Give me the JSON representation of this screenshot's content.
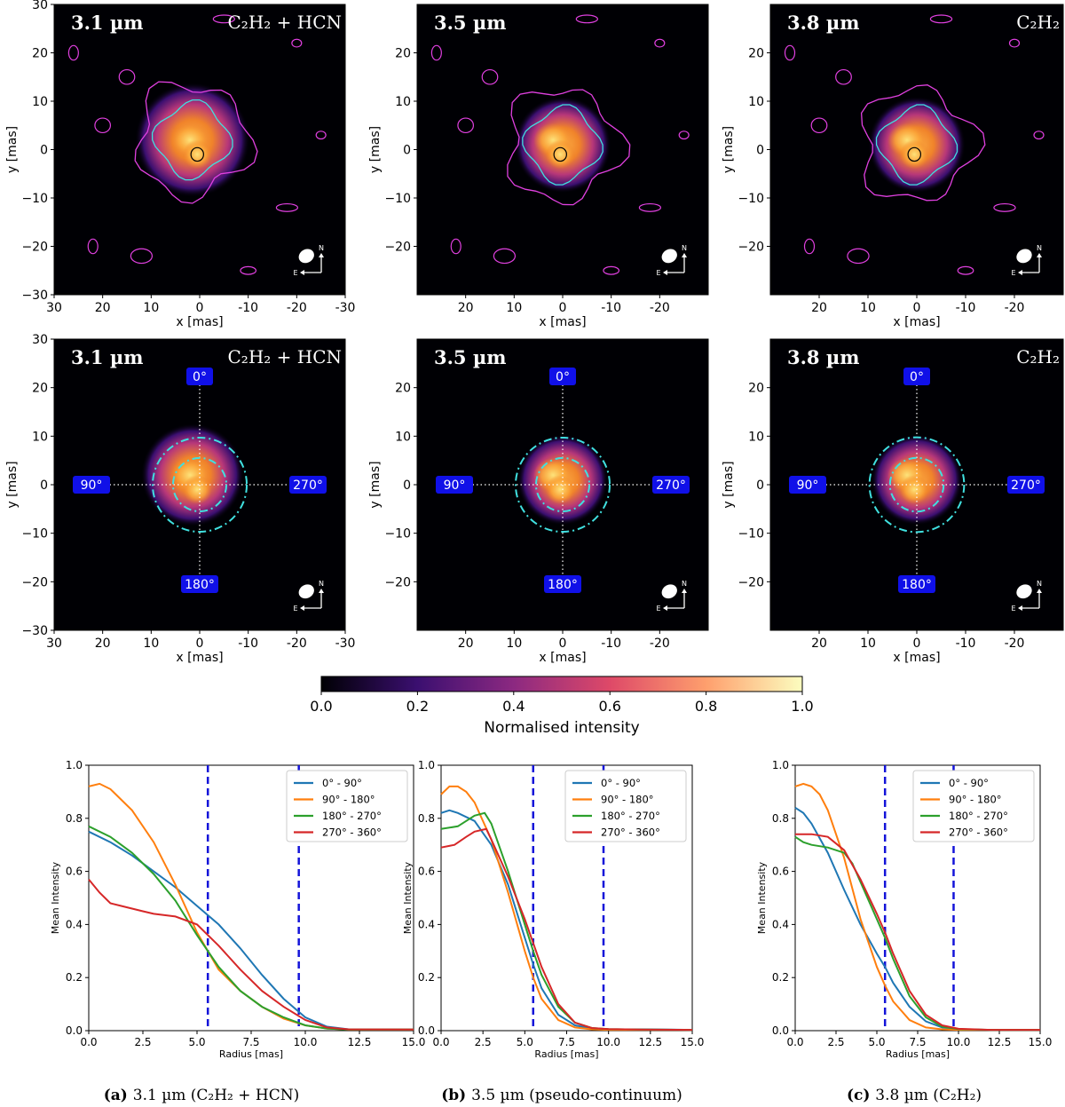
{
  "image_panels": {
    "x_label": "x [mas]",
    "y_label": "y [mas]",
    "compass": {
      "north": "N",
      "east": "E"
    },
    "rows": [
      {
        "kind": "contours",
        "panels": [
          {
            "wavelength": "3.1 µm",
            "molecule": "C₂H₂ + HCN",
            "x_ticks": [
              "30",
              "20",
              "10",
              "0",
              "-10",
              "-20",
              "-30"
            ],
            "y_ticks": [
              "30",
              "20",
              "10",
              "0",
              "−10",
              "−20",
              "−30"
            ]
          },
          {
            "wavelength": "3.5 µm",
            "molecule": "",
            "x_ticks": [
              "20",
              "10",
              "0",
              "-10",
              "-20"
            ],
            "y_ticks": [
              "20",
              "10",
              "0",
              "−10",
              "−20"
            ]
          },
          {
            "wavelength": "3.8 µm",
            "molecule": "C₂H₂",
            "x_ticks": [
              "20",
              "10",
              "0",
              "-10",
              "-20"
            ],
            "y_ticks": [
              "20",
              "10",
              "0",
              "−10",
              "−20"
            ]
          }
        ]
      },
      {
        "kind": "sectors",
        "angles": [
          "0°",
          "90°",
          "270°",
          "180°"
        ],
        "panels": [
          {
            "wavelength": "3.1 µm",
            "molecule": "C₂H₂ + HCN",
            "x_ticks": [
              "30",
              "20",
              "10",
              "0",
              "-10",
              "-20",
              "-30"
            ],
            "y_ticks": [
              "30",
              "20",
              "10",
              "0",
              "−10",
              "−20",
              "−30"
            ]
          },
          {
            "wavelength": "3.5 µm",
            "molecule": "",
            "x_ticks": [
              "20",
              "10",
              "0",
              "-10",
              "-20"
            ],
            "y_ticks": [
              "20",
              "10",
              "0",
              "−10",
              "−20"
            ]
          },
          {
            "wavelength": "3.8 µm",
            "molecule": "C₂H₂",
            "x_ticks": [
              "20",
              "10",
              "0",
              "-10",
              "-20"
            ],
            "y_ticks": [
              "20",
              "10",
              "0",
              "−10",
              "−20"
            ]
          }
        ]
      }
    ]
  },
  "colorbar": {
    "label": "Normalised intensity",
    "ticks": [
      "0.0",
      "0.2",
      "0.4",
      "0.6",
      "0.8",
      "1.0"
    ],
    "colormap": [
      "#000004",
      "#3b0f70",
      "#8c2981",
      "#de4968",
      "#fe9f6d",
      "#fcfdbf"
    ]
  },
  "chart_data": [
    {
      "type": "line",
      "xlabel": "Radius [mas]",
      "ylabel": "Mean Intensity",
      "xlim": [
        0,
        15
      ],
      "ylim": [
        0,
        1
      ],
      "x_ticks": [
        "0.0",
        "2.5",
        "5.0",
        "7.5",
        "10.0",
        "12.5",
        "15.0"
      ],
      "y_ticks": [
        "0.0",
        "0.2",
        "0.4",
        "0.6",
        "0.8",
        "1.0"
      ],
      "vlines": [
        5.5,
        9.7
      ],
      "series": [
        {
          "name": "0° - 90°",
          "color": "#1f77b4",
          "x": [
            0,
            1,
            2,
            3,
            4,
            5,
            6,
            7,
            8,
            9,
            10,
            11,
            12,
            13,
            15
          ],
          "y": [
            0.75,
            0.71,
            0.66,
            0.6,
            0.54,
            0.47,
            0.4,
            0.31,
            0.21,
            0.12,
            0.05,
            0.015,
            0.005,
            0.005,
            0.005
          ]
        },
        {
          "name": "90° - 180°",
          "color": "#ff7f0e",
          "x": [
            0,
            0.5,
            1,
            2,
            3,
            4,
            5,
            6,
            7,
            8,
            9,
            10,
            11,
            12,
            15
          ],
          "y": [
            0.92,
            0.93,
            0.91,
            0.83,
            0.71,
            0.55,
            0.37,
            0.23,
            0.15,
            0.09,
            0.045,
            0.02,
            0.008,
            0.004,
            0.004
          ]
        },
        {
          "name": "180° - 270°",
          "color": "#2ca02c",
          "x": [
            0,
            1,
            2,
            3,
            4,
            5,
            6,
            7,
            8,
            9,
            10,
            11,
            12,
            15
          ],
          "y": [
            0.77,
            0.73,
            0.67,
            0.59,
            0.49,
            0.36,
            0.24,
            0.15,
            0.09,
            0.05,
            0.02,
            0.008,
            0.004,
            0.004
          ]
        },
        {
          "name": "270° - 360°",
          "color": "#d62728",
          "x": [
            0,
            0.5,
            1,
            1.5,
            2,
            2.5,
            3,
            4,
            5,
            6,
            7,
            8,
            9,
            10,
            11,
            12,
            15
          ],
          "y": [
            0.57,
            0.52,
            0.48,
            0.47,
            0.46,
            0.45,
            0.44,
            0.43,
            0.4,
            0.32,
            0.23,
            0.15,
            0.09,
            0.04,
            0.012,
            0.005,
            0.004
          ]
        }
      ]
    },
    {
      "type": "line",
      "xlabel": "Radius [mas]",
      "ylabel": "Mean Intensity",
      "xlim": [
        0,
        15
      ],
      "ylim": [
        0,
        1
      ],
      "x_ticks": [
        "0.0",
        "2.5",
        "5.0",
        "7.5",
        "10.0",
        "12.5",
        "15.0"
      ],
      "y_ticks": [
        "0.0",
        "0.2",
        "0.4",
        "0.6",
        "0.8",
        "1.0"
      ],
      "vlines": [
        5.5,
        9.7
      ],
      "series": [
        {
          "name": "0° - 90°",
          "color": "#1f77b4",
          "x": [
            0,
            0.5,
            1,
            2,
            3,
            4,
            5,
            5.5,
            6,
            7,
            8,
            9,
            10,
            12,
            15
          ],
          "y": [
            0.82,
            0.83,
            0.82,
            0.79,
            0.7,
            0.55,
            0.35,
            0.25,
            0.16,
            0.06,
            0.02,
            0.008,
            0.005,
            0.005,
            0.003
          ]
        },
        {
          "name": "90° - 180°",
          "color": "#ff7f0e",
          "x": [
            0,
            0.5,
            1,
            1.5,
            2,
            3,
            4,
            5,
            5.5,
            6,
            7,
            8,
            9,
            10,
            12,
            15
          ],
          "y": [
            0.89,
            0.92,
            0.92,
            0.9,
            0.86,
            0.72,
            0.52,
            0.3,
            0.2,
            0.12,
            0.04,
            0.012,
            0.005,
            0.003,
            0.003,
            0.003
          ]
        },
        {
          "name": "180° - 270°",
          "color": "#2ca02c",
          "x": [
            0,
            1,
            2,
            2.6,
            3,
            4,
            5,
            5.5,
            6,
            7,
            8,
            9,
            10,
            12,
            15
          ],
          "y": [
            0.76,
            0.77,
            0.81,
            0.82,
            0.78,
            0.6,
            0.4,
            0.3,
            0.21,
            0.09,
            0.03,
            0.01,
            0.006,
            0.004,
            0.003
          ]
        },
        {
          "name": "270° - 360°",
          "color": "#d62728",
          "x": [
            0,
            0.8,
            1.5,
            2,
            2.7,
            3,
            4,
            5,
            5.5,
            6,
            7,
            8,
            9,
            10,
            12,
            15
          ],
          "y": [
            0.69,
            0.7,
            0.73,
            0.75,
            0.76,
            0.72,
            0.58,
            0.42,
            0.33,
            0.24,
            0.1,
            0.03,
            0.01,
            0.006,
            0.004,
            0.003
          ]
        }
      ]
    },
    {
      "type": "line",
      "xlabel": "Radius [mas]",
      "ylabel": "Mean Intensity",
      "xlim": [
        0,
        15
      ],
      "ylim": [
        0,
        1
      ],
      "x_ticks": [
        "0.0",
        "2.5",
        "5.0",
        "7.5",
        "10.0",
        "12.5",
        "15.0"
      ],
      "y_ticks": [
        "0.0",
        "0.2",
        "0.4",
        "0.6",
        "0.8",
        "1.0"
      ],
      "vlines": [
        5.5,
        9.7
      ],
      "series": [
        {
          "name": "0° - 90°",
          "color": "#1f77b4",
          "x": [
            0,
            0.5,
            1,
            2,
            3,
            4,
            5,
            5.5,
            6,
            7,
            8,
            9,
            10,
            12,
            15
          ],
          "y": [
            0.84,
            0.82,
            0.78,
            0.67,
            0.53,
            0.4,
            0.29,
            0.24,
            0.18,
            0.09,
            0.035,
            0.012,
            0.005,
            0.003,
            0.003
          ]
        },
        {
          "name": "90° - 180°",
          "color": "#ff7f0e",
          "x": [
            0,
            0.5,
            1,
            1.5,
            2,
            3,
            4,
            5,
            5.5,
            6,
            7,
            8,
            9,
            10,
            12,
            15
          ],
          "y": [
            0.92,
            0.93,
            0.92,
            0.89,
            0.83,
            0.65,
            0.42,
            0.24,
            0.17,
            0.11,
            0.04,
            0.012,
            0.005,
            0.003,
            0.003,
            0.003
          ]
        },
        {
          "name": "180° - 270°",
          "color": "#2ca02c",
          "x": [
            0,
            0.5,
            1,
            2,
            3,
            3.5,
            4,
            5,
            5.5,
            6,
            7,
            8,
            9,
            10,
            12,
            15
          ],
          "y": [
            0.73,
            0.71,
            0.7,
            0.69,
            0.67,
            0.63,
            0.56,
            0.42,
            0.35,
            0.27,
            0.13,
            0.05,
            0.015,
            0.006,
            0.003,
            0.003
          ]
        },
        {
          "name": "270° - 360°",
          "color": "#d62728",
          "x": [
            0,
            0.5,
            1,
            2,
            3,
            4,
            5,
            5.5,
            6,
            7,
            8,
            9,
            10,
            12,
            15
          ],
          "y": [
            0.74,
            0.74,
            0.74,
            0.73,
            0.68,
            0.57,
            0.44,
            0.37,
            0.29,
            0.15,
            0.06,
            0.02,
            0.007,
            0.003,
            0.003
          ]
        }
      ]
    }
  ],
  "captions": [
    {
      "tag": "(a)",
      "text": "3.1 µm (C₂H₂ + HCN)"
    },
    {
      "tag": "(b)",
      "text": "3.5 µm (pseudo-continuum)"
    },
    {
      "tag": "(c)",
      "text": "3.8 µm (C₂H₂)"
    }
  ]
}
